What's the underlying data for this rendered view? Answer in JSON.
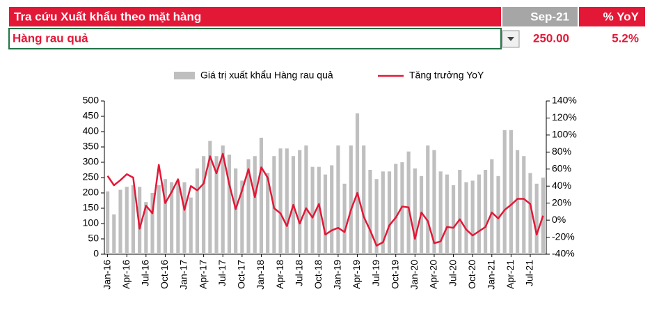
{
  "header": {
    "title": "Tra cứu Xuất khẩu theo mặt hàng",
    "period": "Sep-21",
    "yoy_label": "% YoY",
    "item": "Hàng rau quả",
    "value": "250.00",
    "yoy": "5.2%"
  },
  "chart_data": {
    "type": "combo",
    "categories": [
      "Jan-16",
      null,
      null,
      "Apr-16",
      null,
      null,
      "Jul-16",
      null,
      null,
      "Oct-16",
      null,
      null,
      "Jan-17",
      null,
      null,
      "Apr-17",
      null,
      null,
      "Jul-17",
      null,
      null,
      "Oct-17",
      null,
      null,
      "Jan-18",
      null,
      null,
      "Apr-18",
      null,
      null,
      "Jul-18",
      null,
      null,
      "Oct-18",
      null,
      null,
      "Jan-19",
      null,
      null,
      "Apr-19",
      null,
      null,
      "Jul-19",
      null,
      null,
      "Oct-19",
      null,
      null,
      "Jan-20",
      null,
      null,
      "Apr-20",
      null,
      null,
      "Jul-20",
      null,
      null,
      "Oct-20",
      null,
      null,
      "Jan-21",
      null,
      null,
      "Apr-21",
      null,
      null,
      "Jul-21",
      null,
      null
    ],
    "series": [
      {
        "name": "Giá trị xuất khẩu Hàng rau quả",
        "type": "bar",
        "color": "#bfbfbf",
        "values": [
          205,
          130,
          210,
          220,
          225,
          220,
          170,
          200,
          225,
          245,
          235,
          240,
          235,
          185,
          280,
          320,
          370,
          320,
          355,
          325,
          280,
          240,
          310,
          320,
          380,
          265,
          320,
          345,
          345,
          320,
          340,
          355,
          285,
          285,
          260,
          290,
          355,
          230,
          355,
          460,
          355,
          275,
          245,
          270,
          270,
          295,
          300,
          335,
          280,
          255,
          355,
          340,
          270,
          260,
          225,
          275,
          235,
          240,
          260,
          275,
          310,
          255,
          405,
          405,
          340,
          320,
          265,
          230,
          250
        ]
      },
      {
        "name": "Tăng trưởng YoY",
        "type": "line",
        "axis": "y2",
        "color": "#e31837",
        "values": [
          52,
          41,
          47,
          54,
          50,
          -10,
          17,
          8,
          65,
          20,
          33,
          48,
          12,
          40,
          35,
          43,
          75,
          55,
          78,
          42,
          13,
          35,
          60,
          27,
          62,
          50,
          14,
          8,
          -7,
          18,
          -4,
          14,
          3,
          19,
          -17,
          -12,
          -9,
          -14,
          12,
          32,
          4,
          -12,
          -30,
          -26,
          -6,
          3,
          16,
          15,
          -22,
          9,
          -1,
          -27,
          -25,
          -8,
          -9,
          1,
          -11,
          -18,
          -13,
          -8,
          9,
          2,
          12,
          18,
          25,
          25,
          19,
          -17,
          5.2
        ]
      }
    ],
    "ylim": [
      0,
      500
    ],
    "yticks": [
      0,
      50,
      100,
      150,
      200,
      250,
      300,
      350,
      400,
      450,
      500
    ],
    "y2lim": [
      -40,
      140
    ],
    "y2ticks": [
      {
        "value": -40,
        "label": "-40%"
      },
      {
        "value": -20,
        "label": "-20%"
      },
      {
        "value": 0,
        "label": "0%"
      },
      {
        "value": 20,
        "label": "20%"
      },
      {
        "value": 40,
        "label": "40%"
      },
      {
        "value": 60,
        "label": "60%"
      },
      {
        "value": 80,
        "label": "80%"
      },
      {
        "value": 100,
        "label": "100%"
      },
      {
        "value": 120,
        "label": "120%"
      },
      {
        "value": 140,
        "label": "140%"
      }
    ]
  }
}
